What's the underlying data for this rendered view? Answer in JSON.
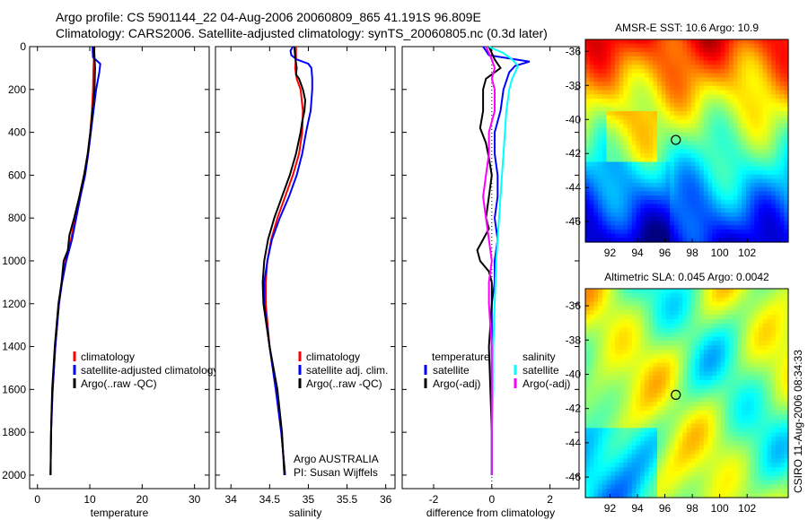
{
  "title_line1": "Argo profile: CS 5901144_22 04-Aug-2006 20060809_865 41.191S 96.809E",
  "title_line2": "Climatology: CARS2006. Satellite-adjusted climatology: synTS_20060805.nc (0.3d later)",
  "side_label": "CSIRO 11-Aug-2006 08:34:33",
  "colors": {
    "climatology": "#ff0000",
    "satellite": "#0000ff",
    "argo": "#000000",
    "sal_satellite": "#00ffff",
    "sal_argo": "#ff00ff"
  },
  "chart_data": [
    {
      "type": "line",
      "id": "temperature",
      "xlabel": "temperature",
      "ylabel": "",
      "xlim": [
        -1.5,
        32.8
      ],
      "ylim": [
        2063,
        0
      ],
      "xticks": [
        0,
        10,
        20,
        30
      ],
      "yticks": [
        0,
        200,
        400,
        600,
        800,
        1000,
        1200,
        1400,
        1600,
        1800,
        2000
      ],
      "legend": [
        {
          "label": "climatology",
          "color": "#ff0000"
        },
        {
          "label": "satellite-adjusted climatology",
          "color": "#0000ff"
        },
        {
          "label": "Argo(..raw -QC)",
          "color": "#000000"
        }
      ],
      "series": [
        {
          "name": "climatology",
          "color": "#ff0000",
          "depth": [
            0,
            100,
            200,
            300,
            400,
            500,
            600,
            700,
            800,
            900,
            1000,
            1100,
            1200,
            1400,
            1600,
            1700,
            1800,
            1900,
            2000
          ],
          "values": [
            10.9,
            10.7,
            10.6,
            10.4,
            10.1,
            9.6,
            8.9,
            8.0,
            7.2,
            6.4,
            5.4,
            4.6,
            4.1,
            3.4,
            2.9,
            2.7,
            2.6,
            2.55,
            2.5
          ]
        },
        {
          "name": "satellite-adjusted climatology",
          "color": "#0000ff",
          "depth": [
            0,
            50,
            80,
            120,
            200,
            300,
            400,
            500,
            600,
            700,
            800,
            900,
            1000,
            1100,
            1200,
            1400,
            1600,
            1800,
            2000
          ],
          "values": [
            10.5,
            10.6,
            12.0,
            11.8,
            11.2,
            10.7,
            10.2,
            9.7,
            9.1,
            8.2,
            7.4,
            6.6,
            5.5,
            4.7,
            4.1,
            3.4,
            2.9,
            2.6,
            2.5
          ]
        },
        {
          "name": "Argo(..raw -QC)",
          "color": "#000000",
          "depth": [
            0,
            100,
            200,
            300,
            400,
            500,
            600,
            700,
            800,
            880,
            950,
            1000,
            1100,
            1200,
            1400,
            1600,
            1800,
            2000
          ],
          "values": [
            10.8,
            11.0,
            10.9,
            10.5,
            10.1,
            9.6,
            8.9,
            8.0,
            7.0,
            6.1,
            5.8,
            5.0,
            4.6,
            4.0,
            3.3,
            2.8,
            2.6,
            2.5
          ]
        }
      ]
    },
    {
      "type": "line",
      "id": "salinity",
      "xlabel": "salinity",
      "xlim": [
        33.8,
        36.12
      ],
      "ylim": [
        2063,
        0
      ],
      "xticks": [
        34,
        34.5,
        35,
        35.5,
        36
      ],
      "legend": [
        {
          "label": "climatology",
          "color": "#ff0000"
        },
        {
          "label": "satellite adj. clim.",
          "color": "#0000ff"
        },
        {
          "label": "Argo(..raw -QC)",
          "color": "#000000"
        }
      ],
      "annotation": [
        "Argo AUSTRALIA",
        "PI: Susan Wijffels"
      ],
      "series": [
        {
          "name": "climatology",
          "color": "#ff0000",
          "depth": [
            0,
            50,
            100,
            150,
            200,
            300,
            400,
            500,
            600,
            700,
            800,
            900,
            1000,
            1100,
            1200,
            1400,
            1600,
            1800,
            2000
          ],
          "values": [
            34.84,
            34.84,
            34.83,
            34.85,
            34.9,
            34.93,
            34.92,
            34.88,
            34.8,
            34.7,
            34.6,
            34.52,
            34.47,
            34.45,
            34.45,
            34.5,
            34.58,
            34.65,
            34.7
          ]
        },
        {
          "name": "satellite adj. clim.",
          "color": "#0000ff",
          "depth": [
            0,
            20,
            40,
            60,
            80,
            100,
            150,
            200,
            250,
            300,
            350,
            400,
            500,
            600,
            700,
            800,
            900,
            1000,
            1100,
            1200,
            1400,
            1600,
            1800,
            2000
          ],
          "values": [
            34.8,
            34.77,
            34.78,
            34.85,
            35.0,
            35.04,
            35.05,
            35.05,
            35.04,
            35.03,
            35.0,
            34.97,
            34.92,
            34.85,
            34.75,
            34.63,
            34.53,
            34.47,
            34.43,
            34.43,
            34.5,
            34.58,
            34.65,
            34.7
          ]
        },
        {
          "name": "Argo(..raw -QC)",
          "color": "#000000",
          "depth": [
            0,
            50,
            100,
            130,
            150,
            200,
            250,
            300,
            350,
            400,
            500,
            600,
            700,
            800,
            900,
            1000,
            1100,
            1200,
            1400,
            1600,
            1800,
            2000
          ],
          "values": [
            34.82,
            34.83,
            34.85,
            34.84,
            34.88,
            34.93,
            34.96,
            34.95,
            34.92,
            34.9,
            34.84,
            34.76,
            34.66,
            34.56,
            34.48,
            34.43,
            34.41,
            34.42,
            34.5,
            34.6,
            34.66,
            34.69
          ]
        }
      ]
    },
    {
      "type": "line",
      "id": "difference",
      "xlabel": "difference from climatology",
      "xlim": [
        -3.08,
        3.0
      ],
      "ylim": [
        2063,
        0
      ],
      "xticks": [
        -2,
        0,
        2
      ],
      "legend_titles": [
        "temperature",
        "salinity"
      ],
      "legend": [
        {
          "label": "satellite",
          "color": "#0000ff",
          "group": "temperature"
        },
        {
          "label": "Argo(-adj)",
          "color": "#000000",
          "group": "temperature"
        },
        {
          "label": "satellite",
          "color": "#00ffff",
          "group": "salinity"
        },
        {
          "label": "Argo(-adj)",
          "color": "#ff00ff",
          "group": "salinity"
        }
      ],
      "series": [
        {
          "name": "temperature satellite",
          "color": "#0000ff",
          "depth": [
            0,
            40,
            70,
            90,
            120,
            200,
            300,
            400,
            500,
            600,
            700,
            800,
            900,
            1000,
            1100,
            1200,
            1400,
            1600,
            1800,
            2000
          ],
          "values": [
            -0.3,
            -0.1,
            1.3,
            0.8,
            0.6,
            0.4,
            0.3,
            0.1,
            0.1,
            0.2,
            0.2,
            0.1,
            0.2,
            0.1,
            0.1,
            0.0,
            0.0,
            0.0,
            0.0,
            0.0
          ]
        },
        {
          "name": "temperature Argo(-adj)",
          "color": "#000000",
          "depth": [
            0,
            60,
            100,
            150,
            200,
            300,
            380,
            450,
            520,
            600,
            700,
            800,
            850,
            900,
            950,
            1000,
            1050,
            1100,
            1200,
            1400,
            1600,
            1800,
            2000
          ],
          "values": [
            -0.1,
            0.1,
            0.3,
            -0.2,
            -0.3,
            -0.3,
            -0.4,
            -0.2,
            -0.1,
            0.0,
            -0.1,
            -0.2,
            -0.1,
            -0.3,
            -0.5,
            -0.4,
            -0.1,
            0.0,
            0.0,
            -0.1,
            -0.05,
            0.0,
            0.0
          ]
        },
        {
          "name": "salinity satellite",
          "color": "#00ffff",
          "depth": [
            0,
            30,
            60,
            90,
            150,
            200,
            300,
            400,
            500,
            600,
            700,
            800,
            900,
            1000,
            1200,
            1400,
            1600,
            1800,
            2000
          ],
          "values": [
            -0.1,
            0.4,
            0.7,
            0.9,
            0.7,
            0.6,
            0.5,
            0.45,
            0.4,
            0.35,
            0.3,
            0.25,
            0.2,
            0.15,
            0.1,
            0.05,
            0.05,
            0.0,
            0.0
          ]
        },
        {
          "name": "salinity Argo(-adj)",
          "color": "#ff00ff",
          "depth": [
            0,
            30,
            60,
            100,
            150,
            200,
            300,
            400,
            500,
            600,
            700,
            800,
            900,
            1000,
            1100,
            1200,
            1400,
            1600,
            1800,
            2000
          ],
          "values": [
            -0.2,
            -0.1,
            0.0,
            0.1,
            0.0,
            0.1,
            0.1,
            -0.1,
            -0.1,
            -0.2,
            -0.3,
            -0.2,
            -0.1,
            0.0,
            -0.1,
            -0.1,
            0.0,
            0.0,
            0.0,
            0.0
          ]
        }
      ]
    },
    {
      "type": "heatmap",
      "id": "sst_map",
      "title": "AMSR-E SST: 10.6 Argo: 10.9",
      "xlim": [
        90.2,
        105
      ],
      "ylim": [
        -47.2,
        -35.3
      ],
      "xticks": [
        92,
        94,
        96,
        98,
        100,
        102
      ],
      "yticks": [
        -36,
        -38,
        -40,
        -42,
        -44,
        -46
      ],
      "marker": {
        "lon": 96.8,
        "lat": -41.2
      }
    },
    {
      "type": "heatmap",
      "id": "sla_map",
      "title": "Altimetric SLA: 0.045 Argo: 0.0042",
      "xlim": [
        90.2,
        105
      ],
      "ylim": [
        -47.2,
        -35.0
      ],
      "xticks": [
        92,
        94,
        96,
        98,
        100,
        102
      ],
      "yticks": [
        -36,
        -38,
        -40,
        -42,
        -44,
        -46
      ],
      "marker": {
        "lon": 96.8,
        "lat": -41.2
      }
    }
  ]
}
